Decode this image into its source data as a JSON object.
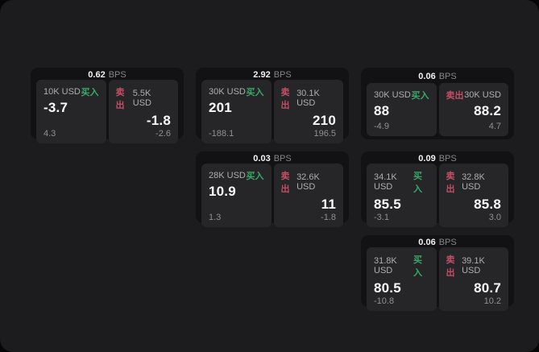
{
  "labels": {
    "bps_unit": "BPS",
    "buy": "买入",
    "sell": "卖出"
  },
  "colors": {
    "buy_green": "#3aa968",
    "sell_red": "#c44e66",
    "surface": "#1c1c1e",
    "card": "#121214",
    "panel": "#262628"
  },
  "cards": [
    {
      "bps": "0.62",
      "buy": {
        "size": "10K USD",
        "price": "-3.7",
        "sub": "4.3"
      },
      "sell": {
        "size": "5.5K USD",
        "price": "-1.8",
        "sub": "-2.6"
      }
    },
    {
      "bps": "2.92",
      "buy": {
        "size": "30K USD",
        "price": "201",
        "sub": "-188.1"
      },
      "sell": {
        "size": "30.1K USD",
        "price": "210",
        "sub": "196.5"
      }
    },
    {
      "bps": "0.06",
      "buy": {
        "size": "30K USD",
        "price": "88",
        "sub": "-4.9"
      },
      "sell": {
        "size": "30K USD",
        "price": "88.2",
        "sub": "4.7"
      }
    },
    {
      "bps": "0.03",
      "buy": {
        "size": "28K USD",
        "price": "10.9",
        "sub": "1.3"
      },
      "sell": {
        "size": "32.6K USD",
        "price": "11",
        "sub": "-1.8"
      }
    },
    {
      "bps": "0.09",
      "buy": {
        "size": "34.1K USD",
        "price": "85.5",
        "sub": "-3.1"
      },
      "sell": {
        "size": "32.8K USD",
        "price": "85.8",
        "sub": "3.0"
      }
    },
    {
      "bps": "0.06",
      "buy": {
        "size": "31.8K USD",
        "price": "80.5",
        "sub": "-10.8"
      },
      "sell": {
        "size": "39.1K USD",
        "price": "80.7",
        "sub": "10.2"
      }
    }
  ]
}
